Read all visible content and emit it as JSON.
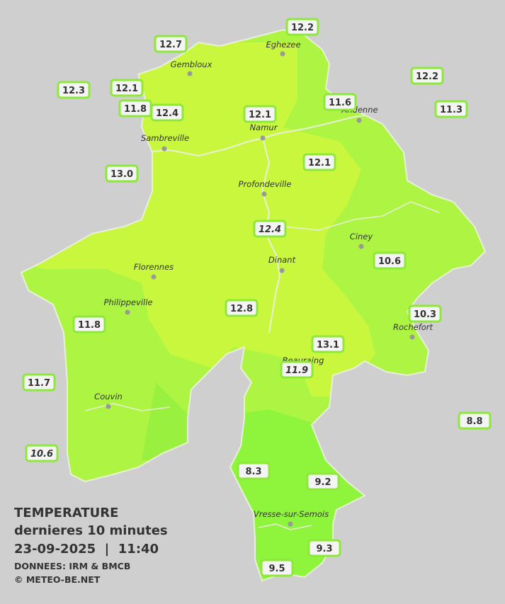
{
  "title": {
    "line1": "TEMPERATURE",
    "line2": "dernieres 10 minutes",
    "line3": "23-09-2025  |  11:40",
    "line4": "DONNEES: IRM & BMCB",
    "line5": "© METEO-BE.NET"
  },
  "towns": [
    {
      "name": "Eghezee"
    },
    {
      "name": "Gembloux"
    },
    {
      "name": "Andenne"
    },
    {
      "name": "Namur"
    },
    {
      "name": "Sambreville"
    },
    {
      "name": "Profondeville"
    },
    {
      "name": "Ciney"
    },
    {
      "name": "Dinant"
    },
    {
      "name": "Florennes"
    },
    {
      "name": "Philippeville"
    },
    {
      "name": "Rochefort"
    },
    {
      "name": "Beauraing"
    },
    {
      "name": "Couvin"
    },
    {
      "name": "Vresse-sur-Semois"
    }
  ],
  "stations": [
    {
      "value": "12.2"
    },
    {
      "value": "12.7"
    },
    {
      "value": "12.3"
    },
    {
      "value": "12.1"
    },
    {
      "value": "11.8"
    },
    {
      "value": "12.4"
    },
    {
      "value": "12.1"
    },
    {
      "value": "11.6"
    },
    {
      "value": "12.2"
    },
    {
      "value": "11.3"
    },
    {
      "value": "13.0"
    },
    {
      "value": "12.1"
    },
    {
      "value": "12.4"
    },
    {
      "value": "10.6"
    },
    {
      "value": "12.8"
    },
    {
      "value": "10.3"
    },
    {
      "value": "11.8"
    },
    {
      "value": "13.1"
    },
    {
      "value": "11.9"
    },
    {
      "value": "11.7"
    },
    {
      "value": "8.8"
    },
    {
      "value": "10.6"
    },
    {
      "value": "8.3"
    },
    {
      "value": "9.2"
    },
    {
      "value": "9.3"
    },
    {
      "value": "9.5"
    }
  ]
}
